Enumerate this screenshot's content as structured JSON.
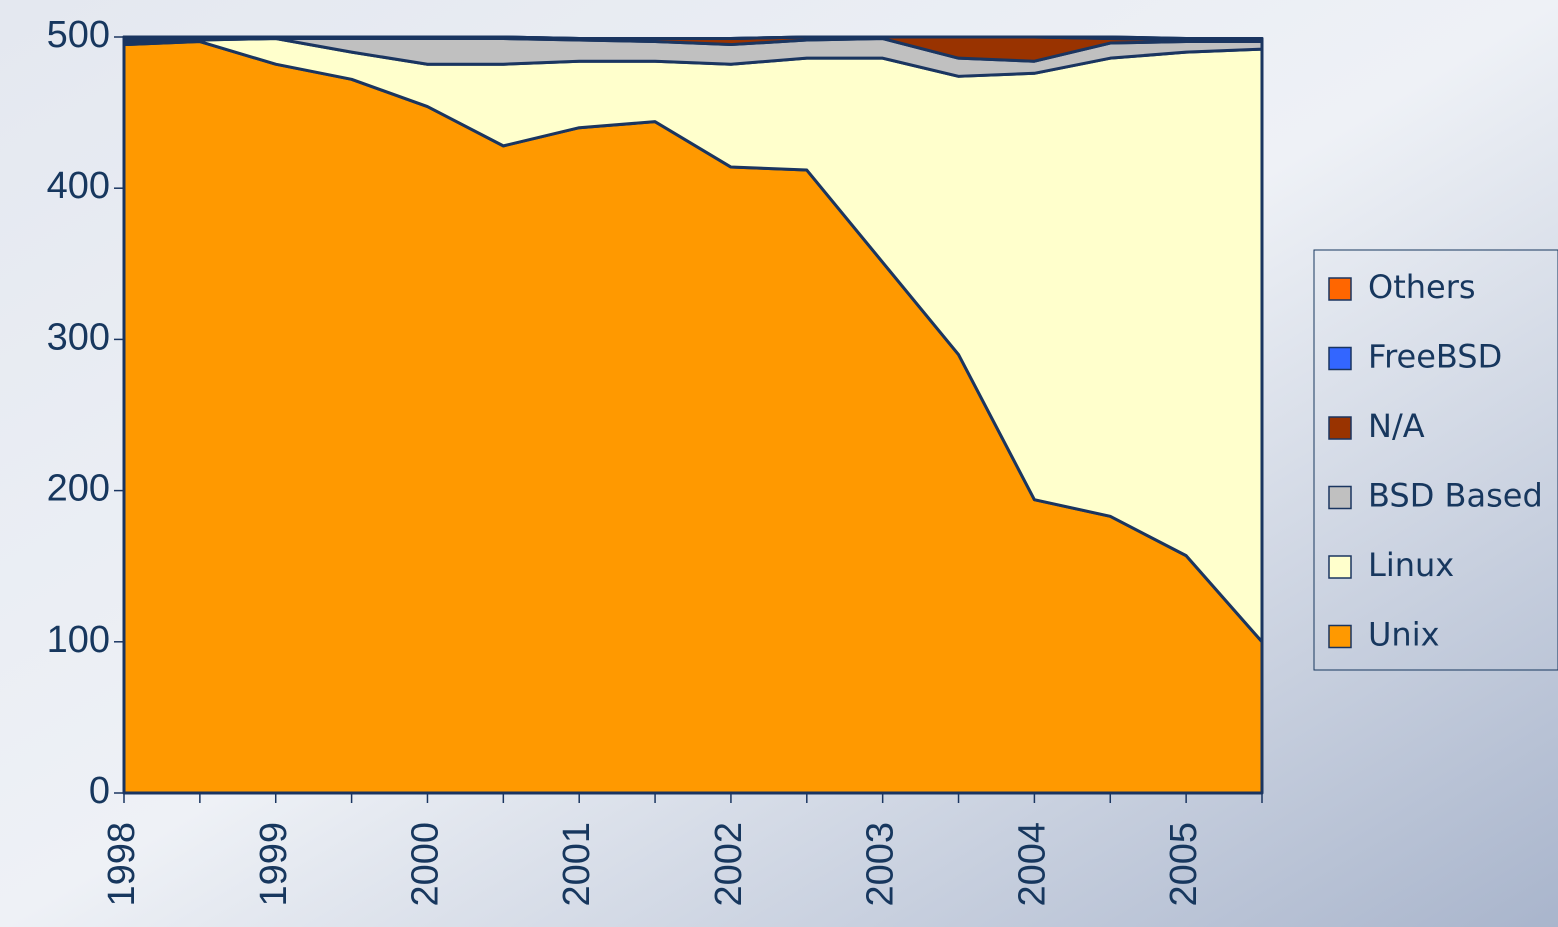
{
  "chart_data": {
    "type": "stacked_area",
    "categories": [
      "1998",
      null,
      "1999",
      null,
      "2000",
      null,
      "2001",
      null,
      "2002",
      null,
      "2003",
      null,
      "2004",
      null,
      "2005",
      null
    ],
    "series": [
      {
        "name": "Unix",
        "color": "#FF9900",
        "values": [
          495,
          497,
          482,
          472,
          454,
          428,
          440,
          444,
          414,
          412,
          351,
          290,
          194,
          183,
          157,
          100
        ]
      },
      {
        "name": "Linux",
        "color": "#FFFFCC",
        "values": [
          2,
          1,
          17,
          18,
          28,
          54,
          44,
          40,
          68,
          74,
          135,
          184,
          282,
          303,
          333,
          392
        ]
      },
      {
        "name": "BSD Based",
        "color": "#C0C0C0",
        "values": [
          2,
          1,
          0,
          9,
          17,
          17,
          14,
          13,
          13,
          12,
          13,
          12,
          8,
          10,
          7,
          5
        ]
      },
      {
        "name": "N/A",
        "color": "#993300",
        "values": [
          1,
          1,
          1,
          1,
          1,
          1,
          1,
          2,
          4,
          2,
          1,
          14,
          16,
          3,
          1,
          1
        ]
      },
      {
        "name": "FreeBSD",
        "color": "#3366FF",
        "values": [
          0,
          0,
          0,
          0,
          0,
          0,
          0,
          0,
          0,
          0,
          0,
          0,
          0,
          1,
          1,
          1
        ]
      },
      {
        "name": "Others",
        "color": "#FF6600",
        "values": [
          0,
          0,
          0,
          0,
          0,
          0,
          0,
          0,
          0,
          0,
          0,
          0,
          0,
          0,
          0,
          0
        ]
      }
    ],
    "ylim": [
      0,
      500
    ],
    "yticks": [
      0,
      100,
      200,
      300,
      400,
      500
    ],
    "legend": "right"
  }
}
